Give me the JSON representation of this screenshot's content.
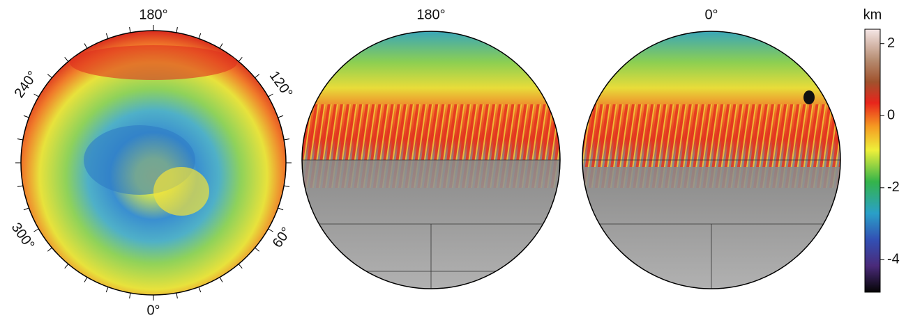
{
  "maps": [
    {
      "labels": {
        "top": "180°",
        "bottom": "0°",
        "upper_left": "240°",
        "upper_right": "120°",
        "lower_left": "300°",
        "lower_right": "60°"
      }
    },
    {
      "labels": {
        "top": "180°"
      }
    },
    {
      "labels": {
        "top": "0°"
      }
    }
  ],
  "colorbar": {
    "title": "km",
    "lim": [
      -4.9,
      2.4
    ],
    "ticks": [
      2,
      0,
      -2,
      -4
    ]
  }
}
